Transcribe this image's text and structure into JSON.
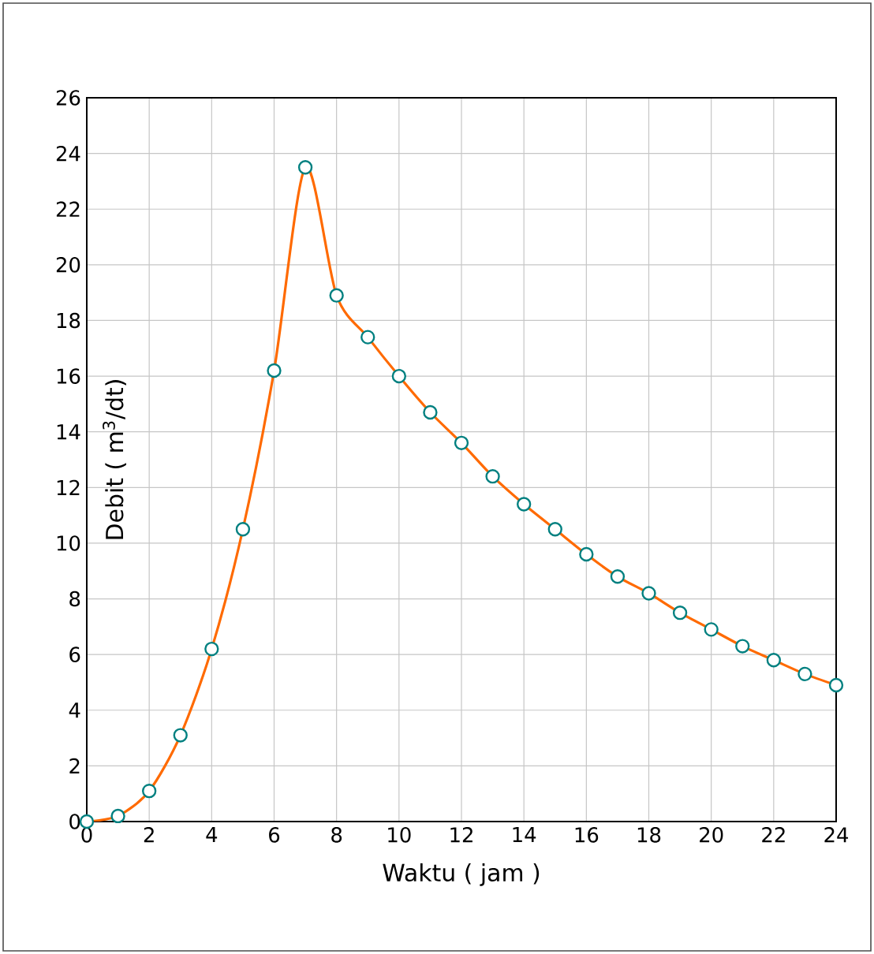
{
  "chart_data": {
    "type": "line",
    "xlabel": "Waktu ( jam )",
    "ylabel": "Debit ( m$^{3}$/dt)",
    "x": [
      0,
      1,
      2,
      3,
      4,
      5,
      6,
      7,
      8,
      9,
      10,
      11,
      12,
      13,
      14,
      15,
      16,
      17,
      18,
      19,
      20,
      21,
      22,
      23,
      24
    ],
    "series": [
      {
        "color": "#ff6a00",
        "values": [
          0,
          0.2,
          1.1,
          3.1,
          6.2,
          10.5,
          16.2,
          23.5,
          18.9,
          17.4,
          16.0,
          14.7,
          13.6,
          12.4,
          11.4,
          10.5,
          9.6,
          8.8,
          8.2,
          7.5,
          6.9,
          6.3,
          5.8,
          5.3,
          4.9
        ]
      }
    ],
    "xlim": [
      0,
      24
    ],
    "ylim": [
      0,
      26
    ],
    "xticks": [
      0,
      2,
      4,
      6,
      8,
      10,
      12,
      14,
      16,
      18,
      20,
      22,
      24
    ],
    "yticks": [
      0,
      2,
      4,
      6,
      8,
      10,
      12,
      14,
      16,
      18,
      20,
      22,
      24,
      26
    ],
    "grid": true,
    "marker": "circle",
    "line_style": "solid"
  }
}
